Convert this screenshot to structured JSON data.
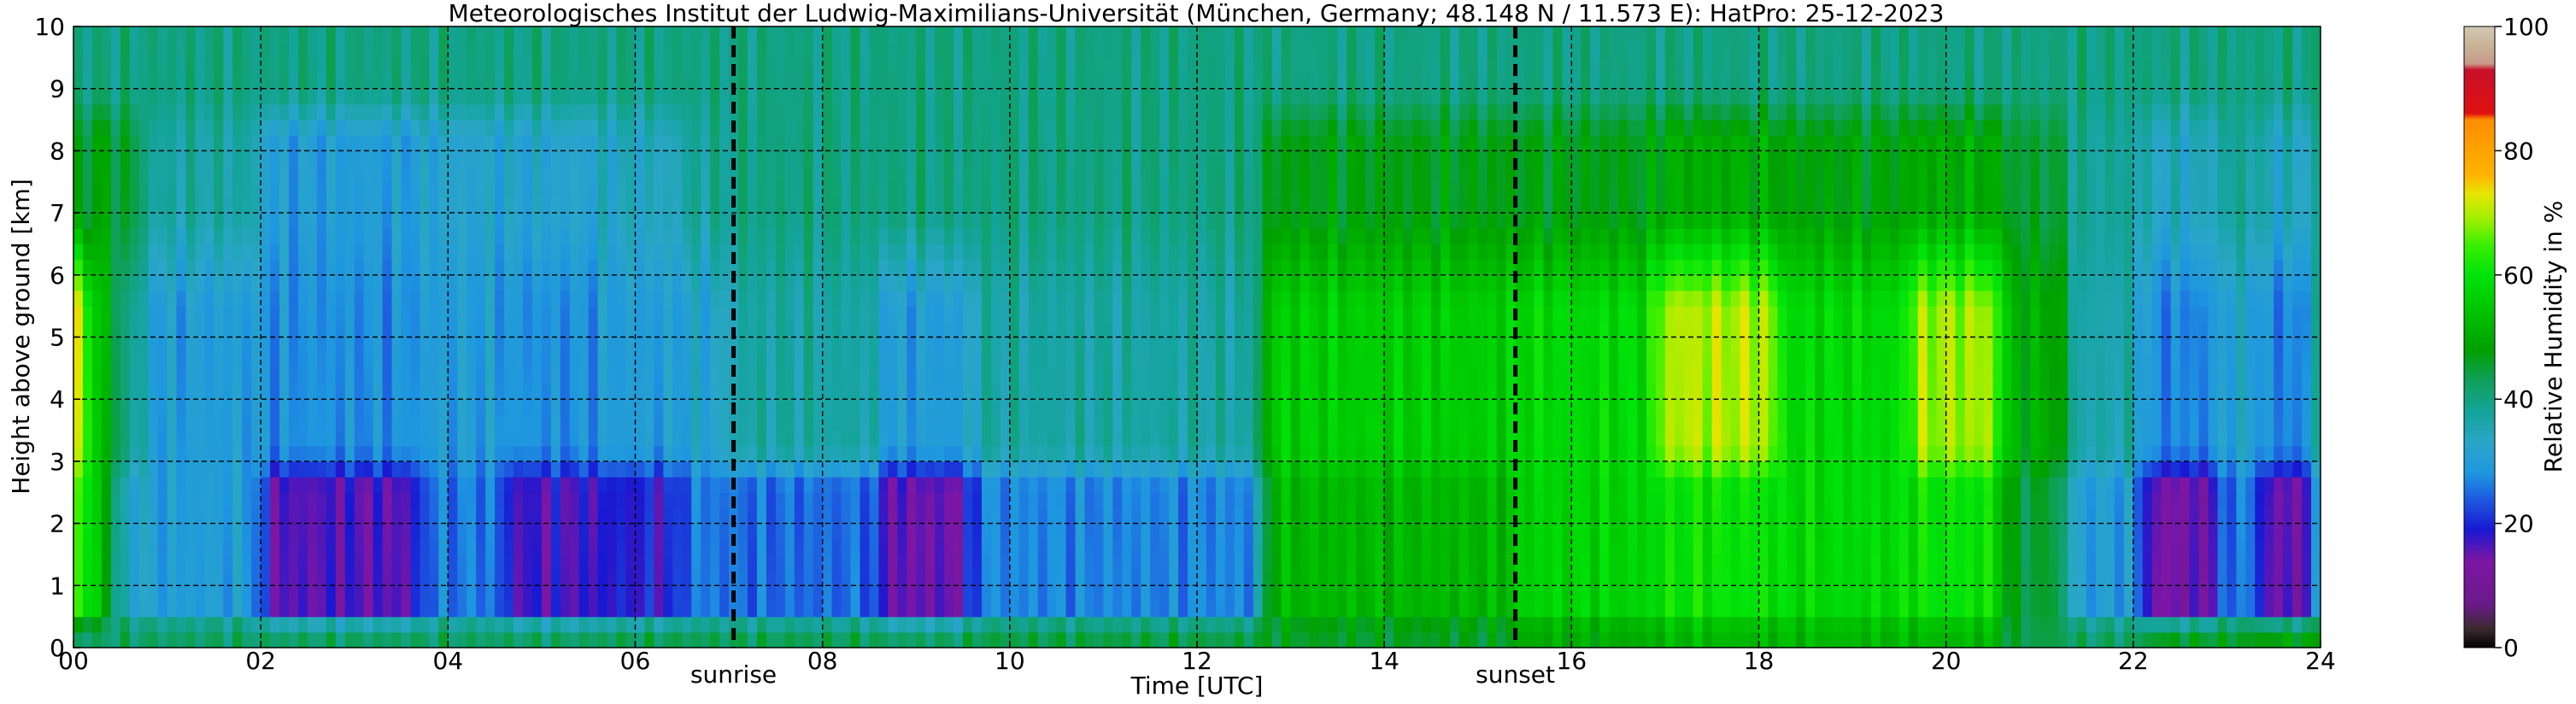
{
  "chart_data": {
    "type": "heatmap",
    "title": "Meteorologisches Institut der Ludwig-Maximilians-Universität (München, Germany; 48.148 N / 11.573 E):    HatPro: 25-12-2023",
    "xlabel": "Time [UTC]",
    "ylabel": "Height above ground [km]",
    "colorbar_label": "Relative Humidity in %",
    "xlim": [
      0,
      24
    ],
    "ylim": [
      0,
      10
    ],
    "clim": [
      0,
      100
    ],
    "x_ticks": [
      0,
      2,
      4,
      6,
      8,
      10,
      12,
      14,
      16,
      18,
      20,
      22,
      24
    ],
    "x_tick_labels": [
      "00",
      "02",
      "04",
      "06",
      "08",
      "10",
      "12",
      "14",
      "16",
      "18",
      "20",
      "22",
      "24"
    ],
    "y_ticks": [
      0,
      1,
      2,
      3,
      4,
      5,
      6,
      7,
      8,
      9,
      10
    ],
    "y_tick_labels": [
      "0",
      "1",
      "2",
      "3",
      "4",
      "5",
      "6",
      "7",
      "8",
      "9",
      "10"
    ],
    "colorbar_ticks": [
      0,
      20,
      40,
      60,
      80,
      100
    ],
    "colorbar_tick_labels": [
      "0",
      "20",
      "40",
      "60",
      "80",
      "100"
    ],
    "grid": true,
    "markers": [
      {
        "x": 7.05,
        "label": "sunrise"
      },
      {
        "x": 15.4,
        "label": "sunset"
      }
    ],
    "colorscale": [
      {
        "v": 0,
        "color": "#000000"
      },
      {
        "v": 3,
        "color": "#3a2a30"
      },
      {
        "v": 7,
        "color": "#6a1a88"
      },
      {
        "v": 14,
        "color": "#7d16a5"
      },
      {
        "v": 19,
        "color": "#1818d2"
      },
      {
        "v": 24,
        "color": "#1e5ce0"
      },
      {
        "v": 28,
        "color": "#1e96e0"
      },
      {
        "v": 33,
        "color": "#2aa6c8"
      },
      {
        "v": 38,
        "color": "#14a49a"
      },
      {
        "v": 43,
        "color": "#0ea05a"
      },
      {
        "v": 48,
        "color": "#00a000"
      },
      {
        "v": 55,
        "color": "#00c800"
      },
      {
        "v": 60,
        "color": "#00e40a"
      },
      {
        "v": 65,
        "color": "#3cf000"
      },
      {
        "v": 69,
        "color": "#a0ee00"
      },
      {
        "v": 73,
        "color": "#e6e600"
      },
      {
        "v": 76,
        "color": "#ffb400"
      },
      {
        "v": 85,
        "color": "#ff8c00"
      },
      {
        "v": 86,
        "color": "#e01010"
      },
      {
        "v": 93,
        "color": "#c8102a"
      },
      {
        "v": 94,
        "color": "#c89a8a"
      },
      {
        "v": 97,
        "color": "#c8b496"
      },
      {
        "v": 100,
        "color": "#d2c8b4"
      }
    ],
    "regimes": [
      {
        "t0": 0.0,
        "t1": 0.15,
        "surf": 42,
        "low": 64,
        "mid": 70,
        "up": 45,
        "top": 40
      },
      {
        "t0": 0.15,
        "t1": 0.4,
        "surf": 42,
        "low": 55,
        "mid": 55,
        "up": 48,
        "top": 40
      },
      {
        "t0": 0.4,
        "t1": 0.75,
        "surf": 42,
        "low": 34,
        "mid": 40,
        "up": 45,
        "top": 40
      },
      {
        "t0": 0.75,
        "t1": 2.0,
        "surf": 42,
        "low": 30,
        "mid": 30,
        "up": 37,
        "top": 40
      },
      {
        "t0": 2.0,
        "t1": 3.7,
        "surf": 42,
        "low": 16,
        "mid": 28,
        "up": 30,
        "top": 40
      },
      {
        "t0": 3.7,
        "t1": 4.6,
        "surf": 42,
        "low": 26,
        "mid": 30,
        "up": 32,
        "top": 40
      },
      {
        "t0": 4.6,
        "t1": 5.6,
        "surf": 42,
        "low": 17,
        "mid": 28,
        "up": 32,
        "top": 40
      },
      {
        "t0": 5.6,
        "t1": 6.5,
        "surf": 43,
        "low": 19,
        "mid": 30,
        "up": 34,
        "top": 40
      },
      {
        "t0": 6.5,
        "t1": 7.0,
        "surf": 43,
        "low": 26,
        "mid": 32,
        "up": 38,
        "top": 40
      },
      {
        "t0": 7.0,
        "t1": 8.6,
        "surf": 43,
        "low": 25,
        "mid": 37,
        "up": 40,
        "top": 40
      },
      {
        "t0": 8.6,
        "t1": 9.6,
        "surf": 42,
        "low": 15,
        "mid": 30,
        "up": 40,
        "top": 40
      },
      {
        "t0": 9.6,
        "t1": 12.7,
        "surf": 44,
        "low": 27,
        "mid": 37,
        "up": 40,
        "top": 40
      },
      {
        "t0": 12.7,
        "t1": 15.4,
        "surf": 46,
        "low": 52,
        "mid": 56,
        "up": 47,
        "top": 40
      },
      {
        "t0": 15.4,
        "t1": 16.9,
        "surf": 50,
        "low": 57,
        "mid": 58,
        "up": 47,
        "top": 40
      },
      {
        "t0": 16.9,
        "t1": 18.2,
        "surf": 52,
        "low": 60,
        "mid": 70,
        "up": 50,
        "top": 40
      },
      {
        "t0": 18.2,
        "t1": 19.6,
        "surf": 52,
        "low": 58,
        "mid": 58,
        "up": 48,
        "top": 40
      },
      {
        "t0": 19.6,
        "t1": 20.6,
        "surf": 52,
        "low": 60,
        "mid": 69,
        "up": 50,
        "top": 40
      },
      {
        "t0": 20.6,
        "t1": 21.3,
        "surf": 44,
        "low": 45,
        "mid": 50,
        "up": 45,
        "top": 40
      },
      {
        "t0": 21.3,
        "t1": 22.1,
        "surf": 42,
        "low": 30,
        "mid": 36,
        "up": 38,
        "top": 40
      },
      {
        "t0": 22.1,
        "t1": 22.9,
        "surf": 46,
        "low": 14,
        "mid": 27,
        "up": 34,
        "top": 40
      },
      {
        "t0": 22.9,
        "t1": 23.35,
        "surf": 46,
        "low": 26,
        "mid": 32,
        "up": 38,
        "top": 40
      },
      {
        "t0": 23.35,
        "t1": 24.0,
        "surf": 48,
        "low": 15,
        "mid": 27,
        "up": 34,
        "top": 40
      }
    ]
  }
}
